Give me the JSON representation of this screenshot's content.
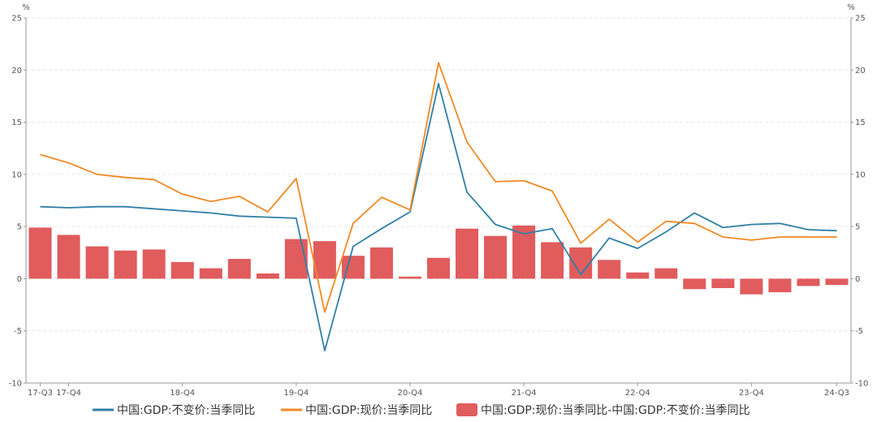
{
  "chart_data": {
    "type": "bar",
    "y_unit_left": "%",
    "y_unit_right": "%",
    "ylim": [
      -10,
      25
    ],
    "yticks": [
      -10,
      -5,
      0,
      5,
      10,
      15,
      20,
      25
    ],
    "grid": true,
    "legend_position": "bottom",
    "categories": [
      "17-Q3",
      "17-Q4",
      "18-Q1",
      "18-Q2",
      "18-Q3",
      "18-Q4",
      "19-Q1",
      "19-Q2",
      "19-Q3",
      "19-Q4",
      "20-Q1",
      "20-Q2",
      "20-Q3",
      "20-Q4",
      "21-Q1",
      "21-Q2",
      "21-Q3",
      "21-Q4",
      "22-Q1",
      "22-Q2",
      "22-Q3",
      "22-Q4",
      "23-Q1",
      "23-Q2",
      "23-Q3",
      "23-Q4",
      "24-Q1",
      "24-Q2",
      "24-Q3"
    ],
    "x_tick_labels": [
      {
        "index": 0,
        "label": "17-Q3"
      },
      {
        "index": 1,
        "label": "17-Q4"
      },
      {
        "index": 5,
        "label": "18-Q4"
      },
      {
        "index": 9,
        "label": "19-Q4"
      },
      {
        "index": 13,
        "label": "20-Q4"
      },
      {
        "index": 17,
        "label": "21-Q4"
      },
      {
        "index": 21,
        "label": "22-Q4"
      },
      {
        "index": 25,
        "label": "23-Q4"
      },
      {
        "index": 28,
        "label": "24-Q3"
      }
    ],
    "series": [
      {
        "name": "中国:GDP:不变价:当季同比",
        "type": "line",
        "color": "#2f7fa5",
        "values": [
          6.9,
          6.8,
          6.9,
          6.9,
          6.7,
          6.5,
          6.3,
          6.0,
          5.9,
          5.8,
          -6.9,
          3.1,
          4.8,
          6.4,
          18.7,
          8.3,
          5.2,
          4.3,
          4.8,
          0.4,
          3.9,
          2.9,
          4.5,
          6.3,
          4.9,
          5.2,
          5.3,
          4.7,
          4.6
        ]
      },
      {
        "name": "中国:GDP:现价:当季同比",
        "type": "line",
        "color": "#f08a24",
        "values": [
          11.9,
          11.1,
          10.0,
          9.7,
          9.5,
          8.1,
          7.4,
          7.9,
          6.4,
          9.6,
          -3.2,
          5.3,
          7.8,
          6.6,
          20.7,
          13.1,
          9.3,
          9.4,
          8.4,
          3.4,
          5.7,
          3.5,
          5.5,
          5.3,
          4.0,
          3.7,
          4.0,
          4.0,
          4.0
        ]
      },
      {
        "name": "中国:GDP:现价:当季同比-中国:GDP:不变价:当季同比",
        "type": "bar",
        "color": "#e05c5d",
        "values": [
          4.9,
          4.2,
          3.1,
          2.7,
          2.8,
          1.6,
          1.0,
          1.9,
          0.5,
          3.8,
          3.6,
          2.2,
          3.0,
          0.2,
          2.0,
          4.8,
          4.1,
          5.1,
          3.5,
          3.0,
          1.8,
          0.6,
          1.0,
          -1.0,
          -0.9,
          -1.5,
          -1.3,
          -0.7,
          -0.6
        ]
      }
    ]
  }
}
